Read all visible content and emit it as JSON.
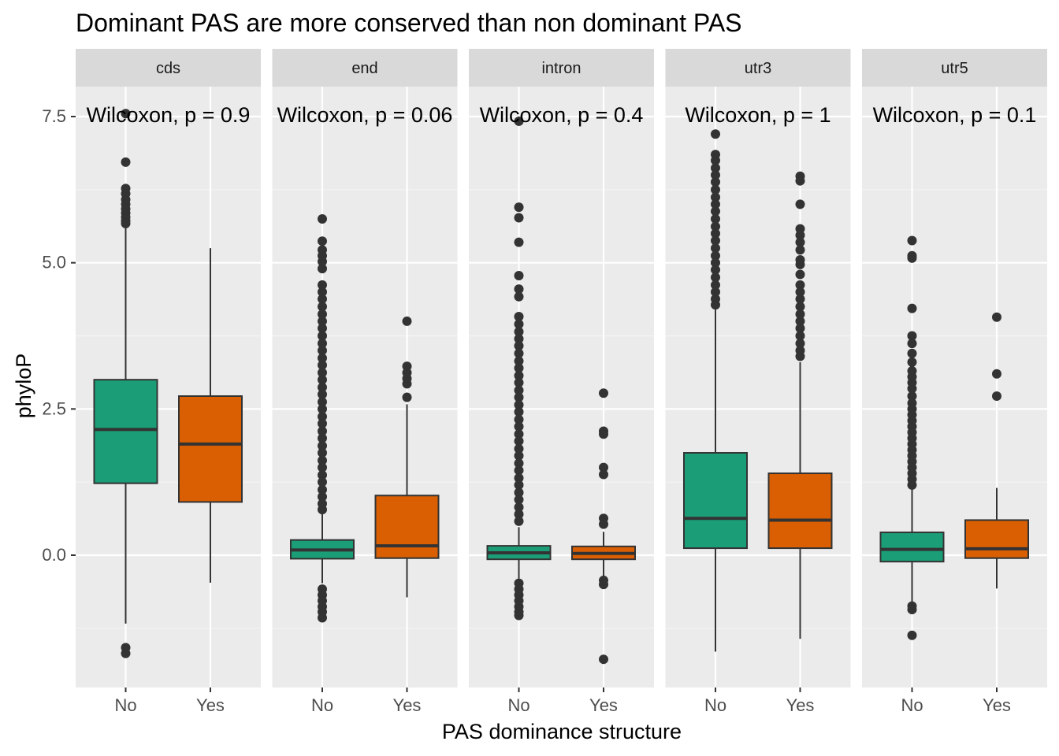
{
  "chart_data": {
    "type": "boxplot",
    "title": "Dominant PAS are more conserved than non dominant PAS",
    "xlabel": "PAS dominance structure",
    "ylabel": "phyloP",
    "ylim": [
      -1.8,
      8.3
    ],
    "y_ticks": [
      0.0,
      2.5,
      5.0,
      7.5
    ],
    "y_tick_labels": [
      "0.0",
      "2.5",
      "5.0",
      "7.5"
    ],
    "categories": [
      "No",
      "Yes"
    ],
    "colors": {
      "No": "#1b9e77",
      "Yes": "#d95f02"
    },
    "grid": true,
    "legend": "none",
    "facets": [
      {
        "name": "cds",
        "annotation": "Wilcoxon, p = 0.9",
        "boxes": [
          {
            "group": "No",
            "q1": 1.23,
            "median": 2.15,
            "q3": 3.0,
            "whisker_low": -1.17,
            "whisker_high": 5.6,
            "outliers": [
              7.55,
              6.72,
              6.27,
              6.18,
              6.08,
              6.0,
              5.92,
              5.85,
              5.78,
              5.72,
              5.67,
              -1.58,
              -1.68
            ]
          },
          {
            "group": "Yes",
            "q1": 0.91,
            "median": 1.9,
            "q3": 2.72,
            "whisker_low": -0.47,
            "whisker_high": 5.25,
            "outliers": []
          }
        ]
      },
      {
        "name": "end",
        "annotation": "Wilcoxon, p = 0.06",
        "boxes": [
          {
            "group": "No",
            "q1": -0.06,
            "median": 0.09,
            "q3": 0.26,
            "whisker_low": -0.48,
            "whisker_high": 0.72,
            "outliers": [
              5.75,
              5.37,
              5.22,
              5.12,
              5.02,
              4.9,
              4.62,
              4.5,
              4.38,
              4.25,
              4.12,
              4.0,
              3.88,
              3.75,
              3.62,
              3.5,
              3.37,
              3.25,
              3.12,
              3.0,
              2.87,
              2.75,
              2.62,
              2.5,
              2.37,
              2.25,
              2.12,
              2.0,
              1.87,
              1.75,
              1.62,
              1.5,
              1.37,
              1.25,
              1.12,
              1.0,
              0.88,
              0.78,
              -0.58,
              -0.68,
              -0.78,
              -0.88,
              -0.97,
              -1.07
            ]
          },
          {
            "group": "Yes",
            "q1": -0.05,
            "median": 0.16,
            "q3": 1.02,
            "whisker_low": -0.72,
            "whisker_high": 2.58,
            "outliers": [
              4.0,
              3.23,
              3.12,
              3.02,
              2.93,
              2.7
            ]
          }
        ]
      },
      {
        "name": "intron",
        "annotation": "Wilcoxon, p = 0.4",
        "boxes": [
          {
            "group": "No",
            "q1": -0.07,
            "median": 0.04,
            "q3": 0.16,
            "whisker_low": -0.4,
            "whisker_high": 0.48,
            "outliers": [
              7.42,
              5.95,
              5.77,
              5.35,
              4.78,
              4.55,
              4.42,
              4.08,
              3.95,
              3.82,
              3.7,
              3.58,
              3.45,
              3.32,
              3.2,
              3.07,
              2.95,
              2.82,
              2.7,
              2.57,
              2.45,
              2.32,
              2.2,
              2.07,
              1.95,
              1.82,
              1.7,
              1.57,
              1.45,
              1.32,
              1.2,
              1.07,
              0.95,
              0.82,
              0.7,
              0.58,
              -0.48,
              -0.58,
              -0.68,
              -0.78,
              -0.88,
              -0.97,
              -1.03
            ]
          },
          {
            "group": "Yes",
            "q1": -0.07,
            "median": 0.03,
            "q3": 0.15,
            "whisker_low": -0.38,
            "whisker_high": 0.4,
            "outliers": [
              2.77,
              2.12,
              2.07,
              1.5,
              1.38,
              0.63,
              0.53,
              -0.43,
              -0.5,
              -1.78
            ]
          }
        ]
      },
      {
        "name": "utr3",
        "annotation": "Wilcoxon, p = 1",
        "boxes": [
          {
            "group": "No",
            "q1": 0.12,
            "median": 0.63,
            "q3": 1.75,
            "whisker_low": -1.65,
            "whisker_high": 4.2,
            "outliers": [
              7.2,
              6.85,
              6.75,
              6.62,
              6.5,
              6.38,
              6.25,
              6.12,
              6.0,
              5.88,
              5.75,
              5.62,
              5.5,
              5.38,
              5.25,
              5.12,
              5.0,
              4.88,
              4.75,
              4.62,
              4.5,
              4.38,
              4.28
            ]
          },
          {
            "group": "Yes",
            "q1": 0.12,
            "median": 0.6,
            "q3": 1.4,
            "whisker_low": -1.43,
            "whisker_high": 3.3,
            "outliers": [
              6.48,
              6.4,
              6.0,
              5.58,
              5.47,
              5.35,
              5.22,
              5.05,
              4.97,
              4.8,
              4.62,
              4.5,
              4.38,
              4.25,
              4.12,
              4.0,
              3.88,
              3.75,
              3.62,
              3.5,
              3.4
            ]
          }
        ]
      },
      {
        "name": "utr5",
        "annotation": "Wilcoxon, p = 0.1",
        "boxes": [
          {
            "group": "No",
            "q1": -0.11,
            "median": 0.1,
            "q3": 0.39,
            "whisker_low": -0.82,
            "whisker_high": 1.13,
            "outliers": [
              5.38,
              5.12,
              5.08,
              4.22,
              3.75,
              3.62,
              3.45,
              3.3,
              3.15,
              3.05,
              2.95,
              2.85,
              2.72,
              2.6,
              2.5,
              2.4,
              2.3,
              2.2,
              2.1,
              2.0,
              1.9,
              1.8,
              1.7,
              1.6,
              1.5,
              1.4,
              1.3,
              1.2,
              -0.87,
              -0.93,
              -1.37
            ]
          },
          {
            "group": "Yes",
            "q1": -0.05,
            "median": 0.11,
            "q3": 0.6,
            "whisker_low": -0.57,
            "whisker_high": 1.15,
            "outliers": [
              4.07,
              3.1,
              2.72
            ]
          }
        ]
      }
    ]
  }
}
